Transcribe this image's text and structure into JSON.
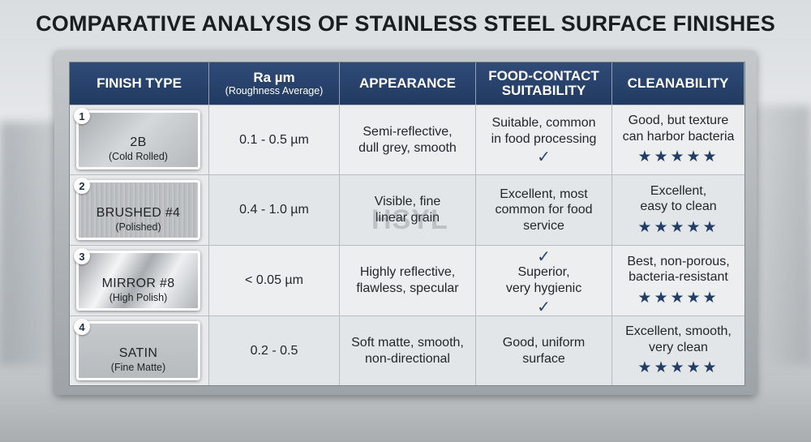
{
  "title": "COMPARATIVE ANALYSIS OF STAINLESS STEEL SURFACE FINISHES",
  "headers": {
    "finish_type": "FINISH TYPE",
    "ra": "Ra µm",
    "ra_sub": "(Roughness Average)",
    "appearance": "APPEARANCE",
    "food_contact_line1": "FOOD-CONTACT",
    "food_contact_line2": "SUITABILITY",
    "cleanability": "CLEANABILITY"
  },
  "rows": [
    {
      "number": "1",
      "finish_name": "2B",
      "finish_sub": "(Cold Rolled)",
      "ra": "0.1 - 0.5 µm",
      "appearance": [
        "Semi-reflective,",
        "dull grey, smooth"
      ],
      "food_contact": [
        "Suitable, common",
        "in food processing"
      ],
      "cleanability": [
        "Good, but texture",
        "can harbor bacteria"
      ],
      "stars": "★★★★★"
    },
    {
      "number": "2",
      "finish_name": "BRUSHED #4",
      "finish_sub": "(Polished)",
      "ra": "0.4 - 1.0 µm",
      "appearance": [
        "Visible, fine",
        "linear grain"
      ],
      "food_contact": [
        "Excellent, most",
        "common for food",
        "service"
      ],
      "cleanability": [
        "Excellent,",
        "easy to clean"
      ],
      "stars": "★★★★★"
    },
    {
      "number": "3",
      "finish_name": "MIRROR #8",
      "finish_sub": "(High Polish)",
      "ra": "< 0.05 µm",
      "appearance": [
        "Highly reflective,",
        "flawless, specular"
      ],
      "food_contact": [
        "Superior,",
        "very hygienic"
      ],
      "cleanability": [
        "Best, non-porous,",
        "bacteria-resistant"
      ],
      "stars": "★★★★★"
    },
    {
      "number": "4",
      "finish_name": "SATIN",
      "finish_sub": "(Fine Matte)",
      "ra": "0.2 - 0.5",
      "appearance": [
        "Soft matte, smooth,",
        "non-directional"
      ],
      "food_contact": [
        "Good, uniform",
        "surface"
      ],
      "cleanability": [
        "Excellent, smooth,",
        "very clean"
      ],
      "stars": "★★★★★"
    }
  ],
  "check_mark": "✓",
  "watermark": "HSYL",
  "icons": {
    "check": "check-icon",
    "stars": "star-rating-icon"
  },
  "colors": {
    "header_bg": "#2a4570",
    "star": "#223d66",
    "check": "#2b4670"
  }
}
